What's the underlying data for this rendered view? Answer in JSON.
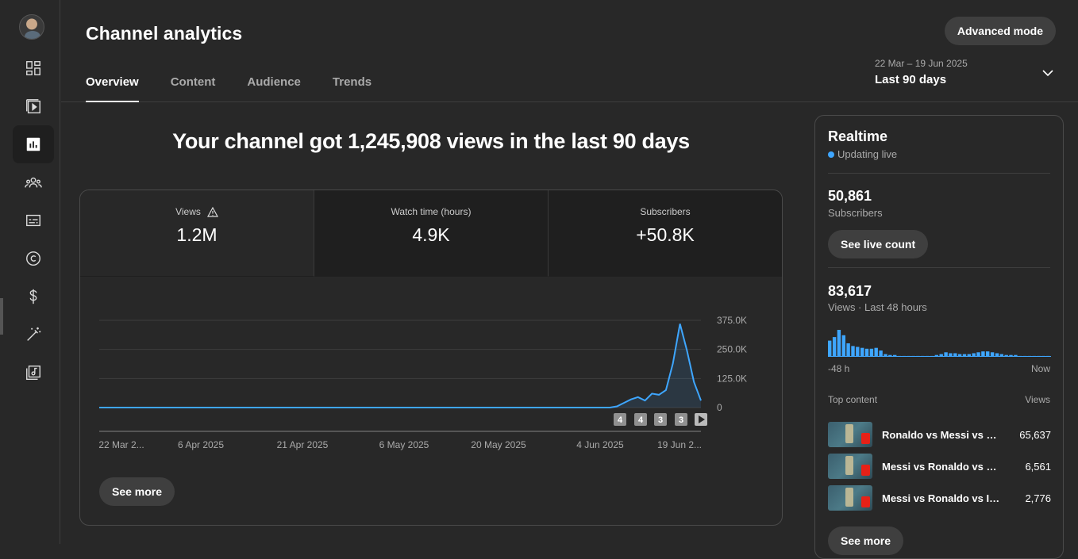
{
  "sidebar": {
    "items": [
      {
        "name": "dashboard-icon"
      },
      {
        "name": "content-icon"
      },
      {
        "name": "analytics-icon"
      },
      {
        "name": "community-icon"
      },
      {
        "name": "subtitles-icon"
      },
      {
        "name": "copyright-icon"
      },
      {
        "name": "earn-icon"
      },
      {
        "name": "customization-icon"
      },
      {
        "name": "audio-library-icon"
      }
    ],
    "active_index": 2
  },
  "header": {
    "title": "Channel analytics",
    "advanced_mode_label": "Advanced mode",
    "tabs": [
      {
        "label": "Overview",
        "active": true
      },
      {
        "label": "Content",
        "active": false
      },
      {
        "label": "Audience",
        "active": false
      },
      {
        "label": "Trends",
        "active": false
      }
    ],
    "date_range_sub": "22 Mar – 19 Jun 2025",
    "date_range_main": "Last 90 days"
  },
  "headline": "Your channel got 1,245,908 views in the last 90 days",
  "metrics": [
    {
      "label": "Views",
      "value": "1.2M",
      "warning": true
    },
    {
      "label": "Watch time (hours)",
      "value": "4.9K"
    },
    {
      "label": "Subscribers",
      "value": "+50.8K"
    }
  ],
  "chart_data": {
    "type": "area",
    "title": "",
    "xlabel": "",
    "ylabel": "",
    "x_tick_labels": [
      "22 Mar 2...",
      "6 Apr 2025",
      "21 Apr 2025",
      "6 May 2025",
      "20 May 2025",
      "4 Jun 2025",
      "19 Jun 2..."
    ],
    "y_tick_labels": [
      "375.0K",
      "250.0K",
      "125.0K",
      "0"
    ],
    "ylim": [
      0,
      375000
    ],
    "grid": true,
    "series": [
      {
        "values": [
          0,
          0,
          0,
          0,
          0,
          0,
          0,
          0,
          0,
          0,
          0,
          0,
          0,
          0,
          0,
          0,
          0,
          0,
          0,
          0,
          0,
          0,
          0,
          0,
          0,
          0,
          0,
          0,
          0,
          0,
          0,
          0,
          0,
          0,
          0,
          0,
          0,
          0,
          0,
          0,
          0,
          0,
          0,
          0,
          0,
          0,
          0,
          0,
          0,
          0,
          0,
          0,
          0,
          0,
          0,
          0,
          0,
          0,
          0,
          0,
          0,
          0,
          0,
          0,
          0,
          0,
          0,
          0,
          0,
          0,
          0,
          0,
          0,
          0,
          5000,
          20000,
          35000,
          45000,
          30000,
          60000,
          55000,
          75000,
          190000,
          360000,
          245000,
          110000,
          30000
        ]
      }
    ],
    "markers": [
      "4",
      "4",
      "3",
      "3"
    ],
    "color": "#3ea6ff"
  },
  "see_more_label": "See more",
  "realtime": {
    "title": "Realtime",
    "live_text": "Updating live",
    "subscribers_value": "50,861",
    "subscribers_label": "Subscribers",
    "live_count_label": "See live count",
    "views_value": "83,617",
    "views_label": "Views · Last 48 hours",
    "bars": [
      18,
      22,
      30,
      24,
      15,
      12,
      11,
      10,
      9,
      9,
      10,
      7,
      3,
      2,
      2,
      1,
      1,
      1,
      1,
      1,
      1,
      1,
      1,
      2,
      3,
      5,
      4,
      4,
      3,
      3,
      3,
      4,
      5,
      6,
      6,
      5,
      4,
      3,
      2,
      2,
      2,
      1,
      1,
      1,
      1,
      1,
      1,
      1
    ],
    "axis_start": "-48 h",
    "axis_end": "Now",
    "top_content_label": "Top content",
    "views_col_label": "Views",
    "top_content": [
      {
        "title": "Ronaldo vs Messi vs Ne...",
        "views": "65,637"
      },
      {
        "title": "Messi vs Ronaldo vs Ney...",
        "views": "6,561"
      },
      {
        "title": "Messi vs Ronaldo vs ISho...",
        "views": "2,776"
      }
    ],
    "see_more_label": "See more"
  }
}
